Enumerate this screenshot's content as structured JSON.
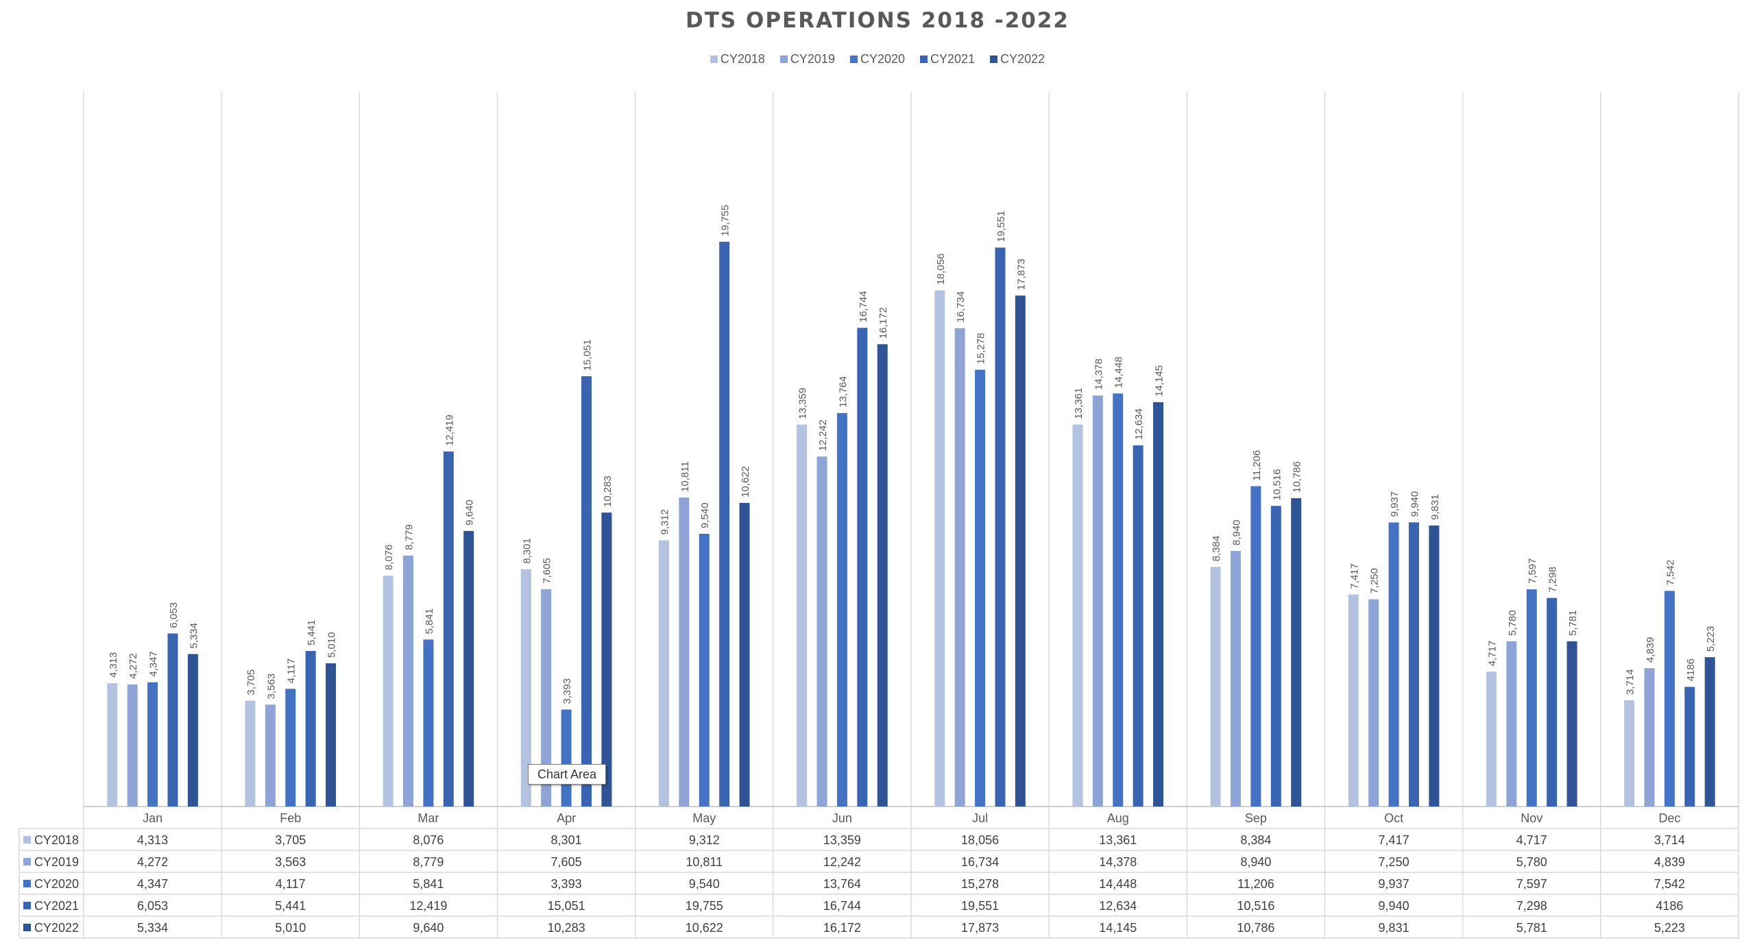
{
  "chart_data": {
    "type": "bar",
    "title": "DTS OPERATIONS 2018 -2022",
    "xlabel": "",
    "ylabel": "",
    "ylim": [
      0,
      25000
    ],
    "grid": "vertical category separators",
    "legend_position": "top",
    "categories": [
      "Jan",
      "Feb",
      "Mar",
      "Apr",
      "May",
      "Jun",
      "Jul",
      "Aug",
      "Sep",
      "Oct",
      "Nov",
      "Dec"
    ],
    "series": [
      {
        "name": "CY2018",
        "color": "#B4C2E2",
        "values": [
          4313,
          3705,
          8076,
          8301,
          9312,
          13359,
          18056,
          13361,
          8384,
          7417,
          4717,
          3714
        ],
        "labels": [
          "4,313",
          "3,705",
          "8,076",
          "8,301",
          "9,312",
          "13,359",
          "18,056",
          "13,361",
          "8,384",
          "7,417",
          "4,717",
          "3,714"
        ]
      },
      {
        "name": "CY2019",
        "color": "#8EA4D6",
        "values": [
          4272,
          3563,
          8779,
          7605,
          10811,
          12242,
          16734,
          14378,
          8940,
          7250,
          5780,
          4839
        ],
        "labels": [
          "4,272",
          "3,563",
          "8,779",
          "7,605",
          "10,811",
          "12,242",
          "16,734",
          "14,378",
          "8,940",
          "7,250",
          "5,780",
          "4,839"
        ]
      },
      {
        "name": "CY2020",
        "color": "#4472C4",
        "values": [
          4347,
          4117,
          5841,
          3393,
          9540,
          13764,
          15278,
          14448,
          11206,
          9937,
          7597,
          7542
        ],
        "labels": [
          "4,347",
          "4,117",
          "5,841",
          "3,393",
          "9,540",
          "13,764",
          "15,278",
          "14,448",
          "11,206",
          "9,937",
          "7,597",
          "7,542"
        ]
      },
      {
        "name": "CY2021",
        "color": "#3864B2",
        "values": [
          6053,
          5441,
          12419,
          15051,
          19755,
          16744,
          19551,
          12634,
          10516,
          9940,
          7298,
          4186
        ],
        "labels": [
          "6,053",
          "5,441",
          "12,419",
          "15,051",
          "19,755",
          "16,744",
          "19,551",
          "12,634",
          "10,516",
          "9,940",
          "7,298",
          "4186"
        ]
      },
      {
        "name": "CY2022",
        "color": "#2F5496",
        "values": [
          5334,
          5010,
          9640,
          10283,
          10622,
          16172,
          17873,
          14145,
          10786,
          9831,
          5781,
          5223
        ],
        "labels": [
          "5,334",
          "5,010",
          "9,640",
          "10,283",
          "10,622",
          "16,172",
          "17,873",
          "14,145",
          "10,786",
          "9,831",
          "5,781",
          "5,223"
        ]
      }
    ]
  },
  "tooltip": "Chart Area"
}
